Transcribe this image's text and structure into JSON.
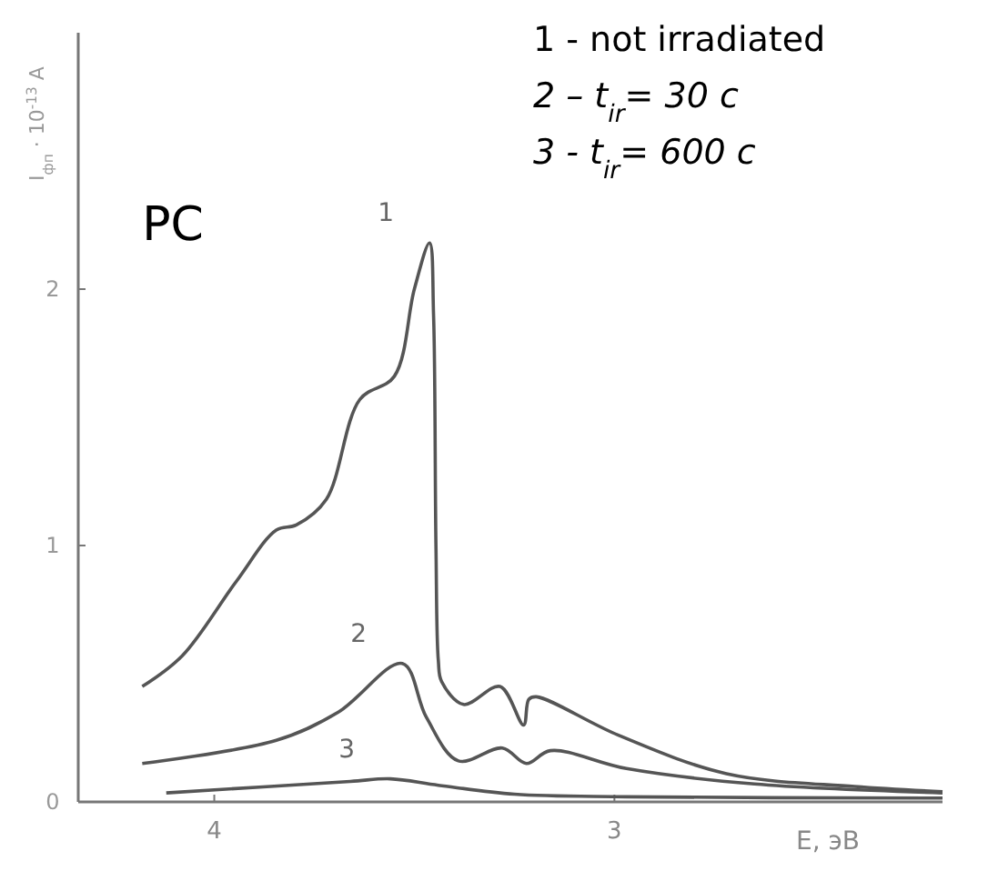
{
  "chart_data": {
    "type": "line",
    "title": "PC",
    "xlabel": "E, эВ",
    "ylabel": "I$_{фп}$ · 10$^{-13}$ A",
    "xlim": [
      4.34,
      2.18
    ],
    "xticks": [
      4,
      3
    ],
    "ylim": [
      0,
      3
    ],
    "yticks": [
      0,
      1,
      2
    ],
    "grid": false,
    "marker": "none",
    "line_style": "solid",
    "series": [
      {
        "name": "1",
        "color": "#555555",
        "x": [
          4.18,
          4.08,
          3.945,
          3.845,
          3.795,
          3.72,
          3.636,
          3.55,
          3.5,
          3.462,
          3.452,
          3.446,
          3.44,
          3.432,
          3.377,
          3.286,
          3.227,
          3.214,
          3.195,
          2.99,
          2.72,
          2.4,
          2.18
        ],
        "values": [
          0.45,
          0.57,
          0.86,
          1.06,
          1.08,
          1.18,
          1.57,
          1.66,
          2.0,
          2.18,
          1.9,
          1.0,
          0.55,
          0.47,
          0.38,
          0.45,
          0.3,
          0.4,
          0.41,
          0.26,
          0.11,
          0.06,
          0.04
        ]
      },
      {
        "name": "2",
        "color": "#555555",
        "x": [
          4.18,
          3.845,
          3.69,
          3.53,
          3.47,
          3.39,
          3.28,
          3.22,
          3.16,
          2.97,
          2.65,
          2.18
        ],
        "values": [
          0.15,
          0.24,
          0.35,
          0.54,
          0.33,
          0.16,
          0.21,
          0.15,
          0.2,
          0.13,
          0.07,
          0.035
        ]
      },
      {
        "name": "3",
        "color": "#555555",
        "x": [
          4.12,
          3.66,
          3.56,
          3.44,
          3.25,
          2.97,
          2.18
        ],
        "values": [
          0.035,
          0.08,
          0.09,
          0.065,
          0.03,
          0.02,
          0.015
        ]
      }
    ],
    "annotations": [
      "1 - not irradiated",
      "2 – t$_{ir}$= 30 c",
      "3 - t$_{ir}$= 600 c"
    ]
  }
}
